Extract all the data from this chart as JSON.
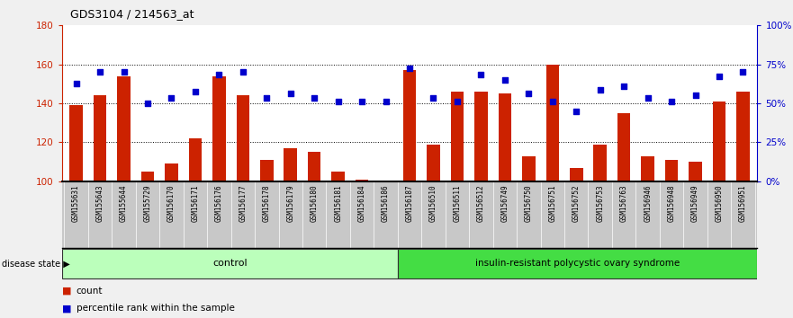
{
  "title": "GDS3104 / 214563_at",
  "samples": [
    "GSM155631",
    "GSM155643",
    "GSM155644",
    "GSM155729",
    "GSM156170",
    "GSM156171",
    "GSM156176",
    "GSM156177",
    "GSM156178",
    "GSM156179",
    "GSM156180",
    "GSM156181",
    "GSM156184",
    "GSM156186",
    "GSM156187",
    "GSM156510",
    "GSM156511",
    "GSM156512",
    "GSM156749",
    "GSM156750",
    "GSM156751",
    "GSM156752",
    "GSM156753",
    "GSM156763",
    "GSM156946",
    "GSM156948",
    "GSM156949",
    "GSM156950",
    "GSM156951"
  ],
  "bar_values": [
    139,
    144,
    154,
    105,
    109,
    122,
    154,
    144,
    111,
    117,
    115,
    105,
    101,
    100,
    157,
    119,
    146,
    146,
    145,
    113,
    160,
    107,
    119,
    135,
    113,
    111,
    110,
    141,
    146
  ],
  "dot_values": [
    150,
    156,
    156,
    140,
    143,
    146,
    155,
    156,
    143,
    145,
    143,
    141,
    141,
    141,
    158,
    143,
    141,
    155,
    152,
    145,
    141,
    136,
    147,
    149,
    143,
    141,
    144,
    154,
    156
  ],
  "control_count": 14,
  "ylim_left": [
    100,
    180
  ],
  "yticks_left": [
    100,
    120,
    140,
    160,
    180
  ],
  "ytick_labels_left": [
    "100",
    "120",
    "140",
    "160",
    "180"
  ],
  "yticks_right_vals": [
    0,
    25,
    50,
    75,
    100
  ],
  "ytick_labels_right": [
    "0%",
    "25%",
    "50%",
    "75%",
    "100%"
  ],
  "bar_color": "#cc2200",
  "dot_color": "#0000cc",
  "control_color": "#bbffbb",
  "disease_color": "#44dd44",
  "bg_gray": "#c8c8c8",
  "control_label": "control",
  "disease_label": "insulin-resistant polycystic ovary syndrome",
  "disease_state_label": "disease state",
  "legend_count": "count",
  "legend_percentile": "percentile rank within the sample"
}
